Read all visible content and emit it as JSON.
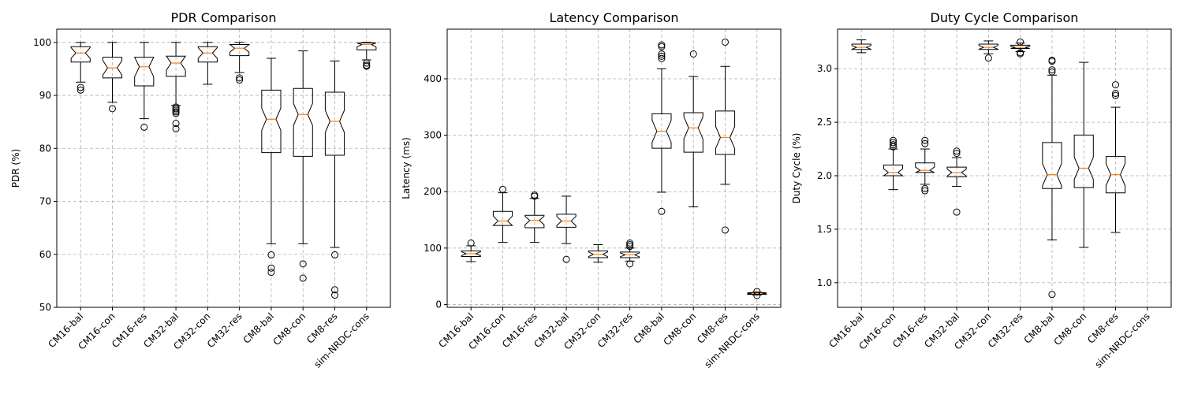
{
  "chart_data": [
    {
      "type": "box",
      "title": "PDR Comparison",
      "ylabel": "PDR (%)",
      "ylim": [
        50,
        102.5
      ],
      "yticks": [
        50,
        60,
        70,
        80,
        90,
        100
      ],
      "categories": [
        "CM16-bal",
        "CM16-con",
        "CM16-res",
        "CM32-bal",
        "CM32-con",
        "CM32-res",
        "CM8-bal",
        "CM8-con",
        "CM8-res",
        "sim-NRDC-cons"
      ],
      "boxes": [
        {
          "q1": 96.3,
          "median": 98.0,
          "q3": 99.2,
          "whislo": 92.5,
          "whishi": 100.0,
          "fliers": [
            91.0,
            91.5
          ]
        },
        {
          "q1": 93.3,
          "median": 95.2,
          "q3": 97.2,
          "whislo": 88.7,
          "whishi": 100.0,
          "fliers": [
            87.5
          ]
        },
        {
          "q1": 91.8,
          "median": 95.4,
          "q3": 97.2,
          "whislo": 85.6,
          "whishi": 100.0,
          "fliers": [
            84.0
          ]
        },
        {
          "q1": 93.6,
          "median": 96.1,
          "q3": 97.4,
          "whislo": 88.1,
          "whishi": 100.0,
          "fliers": [
            83.7,
            84.7,
            86.6,
            86.9,
            87.2,
            87.5,
            87.8
          ]
        },
        {
          "q1": 96.3,
          "median": 98.0,
          "q3": 99.2,
          "whislo": 92.1,
          "whishi": 100.0,
          "fliers": []
        },
        {
          "q1": 97.5,
          "median": 98.9,
          "q3": 99.6,
          "whislo": 94.3,
          "whishi": 100.0,
          "fliers": [
            92.9,
            93.3
          ]
        },
        {
          "q1": 79.2,
          "median": 85.5,
          "q3": 91.0,
          "whislo": 62.0,
          "whishi": 97.0,
          "fliers": [
            56.6,
            57.4,
            59.9
          ]
        },
        {
          "q1": 78.5,
          "median": 86.4,
          "q3": 91.3,
          "whislo": 62.0,
          "whishi": 98.4,
          "fliers": [
            55.5,
            58.2
          ]
        },
        {
          "q1": 78.7,
          "median": 85.1,
          "q3": 90.6,
          "whislo": 61.3,
          "whishi": 96.5,
          "fliers": [
            52.3,
            53.3,
            59.9
          ]
        },
        {
          "q1": 98.6,
          "median": 99.6,
          "q3": 99.9,
          "whislo": 96.7,
          "whishi": 100.0,
          "fliers": [
            95.5,
            95.7,
            96.1
          ]
        }
      ]
    },
    {
      "type": "box",
      "title": "Latency Comparison",
      "ylabel": "Latency (ms)",
      "ylim": [
        -5,
        488
      ],
      "yticks": [
        0,
        100,
        200,
        300,
        400
      ],
      "categories": [
        "CM16-bal",
        "CM16-con",
        "CM16-res",
        "CM32-bal",
        "CM32-con",
        "CM32-res",
        "CM8-bal",
        "CM8-con",
        "CM8-res",
        "sim-NRDC-cons"
      ],
      "boxes": [
        {
          "q1": 85,
          "median": 90,
          "q3": 95,
          "whislo": 76,
          "whishi": 104,
          "fliers": [
            109
          ]
        },
        {
          "q1": 140,
          "median": 148,
          "q3": 165,
          "whislo": 110,
          "whishi": 198,
          "fliers": [
            204
          ]
        },
        {
          "q1": 136,
          "median": 149,
          "q3": 158,
          "whislo": 110,
          "whishi": 188,
          "fliers": [
            192,
            194
          ]
        },
        {
          "q1": 137,
          "median": 148,
          "q3": 160,
          "whislo": 108,
          "whishi": 192,
          "fliers": [
            80
          ]
        },
        {
          "q1": 83,
          "median": 89,
          "q3": 95,
          "whislo": 75,
          "whishi": 106,
          "fliers": []
        },
        {
          "q1": 83,
          "median": 88,
          "q3": 93,
          "whislo": 77,
          "whishi": 100,
          "fliers": [
            72,
            103,
            106,
            109
          ]
        },
        {
          "q1": 277,
          "median": 307,
          "q3": 338,
          "whislo": 199,
          "whishi": 418,
          "fliers": [
            165,
            436,
            440,
            444,
            457,
            460
          ]
        },
        {
          "q1": 270,
          "median": 313,
          "q3": 340,
          "whislo": 173,
          "whishi": 404,
          "fliers": [
            444
          ]
        },
        {
          "q1": 266,
          "median": 296,
          "q3": 343,
          "whislo": 213,
          "whishi": 422,
          "fliers": [
            132,
            465
          ]
        },
        {
          "q1": 18,
          "median": 20,
          "q3": 21,
          "whislo": 17,
          "whishi": 22,
          "fliers": [
            16,
            23
          ]
        }
      ]
    },
    {
      "type": "box",
      "title": "Duty Cycle Comparison",
      "ylabel": "Duty Cycle (%)",
      "ylim": [
        0.77,
        3.37
      ],
      "yticks": [
        1.0,
        1.5,
        2.0,
        2.5,
        3.0
      ],
      "categories": [
        "CM16-bal",
        "CM16-con",
        "CM16-res",
        "CM32-bal",
        "CM32-con",
        "CM32-res",
        "CM8-bal",
        "CM8-con",
        "CM8-res",
        "sim-NRDC-cons"
      ],
      "boxes": [
        {
          "q1": 3.18,
          "median": 3.2,
          "q3": 3.23,
          "whislo": 3.15,
          "whishi": 3.27,
          "fliers": []
        },
        {
          "q1": 2.0,
          "median": 2.03,
          "q3": 2.1,
          "whislo": 1.87,
          "whishi": 2.25,
          "fliers": [
            2.27,
            2.29,
            2.31,
            2.33
          ]
        },
        {
          "q1": 2.03,
          "median": 2.05,
          "q3": 2.12,
          "whislo": 1.92,
          "whishi": 2.25,
          "fliers": [
            1.86,
            1.88,
            2.3,
            2.33
          ]
        },
        {
          "q1": 1.99,
          "median": 2.03,
          "q3": 2.08,
          "whislo": 1.9,
          "whishi": 2.17,
          "fliers": [
            1.66,
            2.21,
            2.23
          ]
        },
        {
          "q1": 3.18,
          "median": 3.2,
          "q3": 3.23,
          "whislo": 3.14,
          "whishi": 3.26,
          "fliers": [
            3.1
          ]
        },
        {
          "q1": 3.19,
          "median": 3.2,
          "q3": 3.22,
          "whislo": 3.16,
          "whishi": 3.24,
          "fliers": [
            3.14,
            3.15,
            3.25
          ]
        },
        {
          "q1": 1.88,
          "median": 2.01,
          "q3": 2.31,
          "whislo": 1.4,
          "whishi": 2.94,
          "fliers": [
            0.89,
            2.97,
            2.99,
            3.07,
            3.08
          ]
        },
        {
          "q1": 1.89,
          "median": 2.07,
          "q3": 2.38,
          "whislo": 1.33,
          "whishi": 3.06,
          "fliers": []
        },
        {
          "q1": 1.84,
          "median": 2.01,
          "q3": 2.18,
          "whislo": 1.47,
          "whishi": 2.64,
          "fliers": [
            2.75,
            2.77,
            2.85
          ]
        },
        {
          "q1": null,
          "median": null,
          "q3": null,
          "whislo": null,
          "whishi": null,
          "fliers": []
        }
      ]
    }
  ]
}
